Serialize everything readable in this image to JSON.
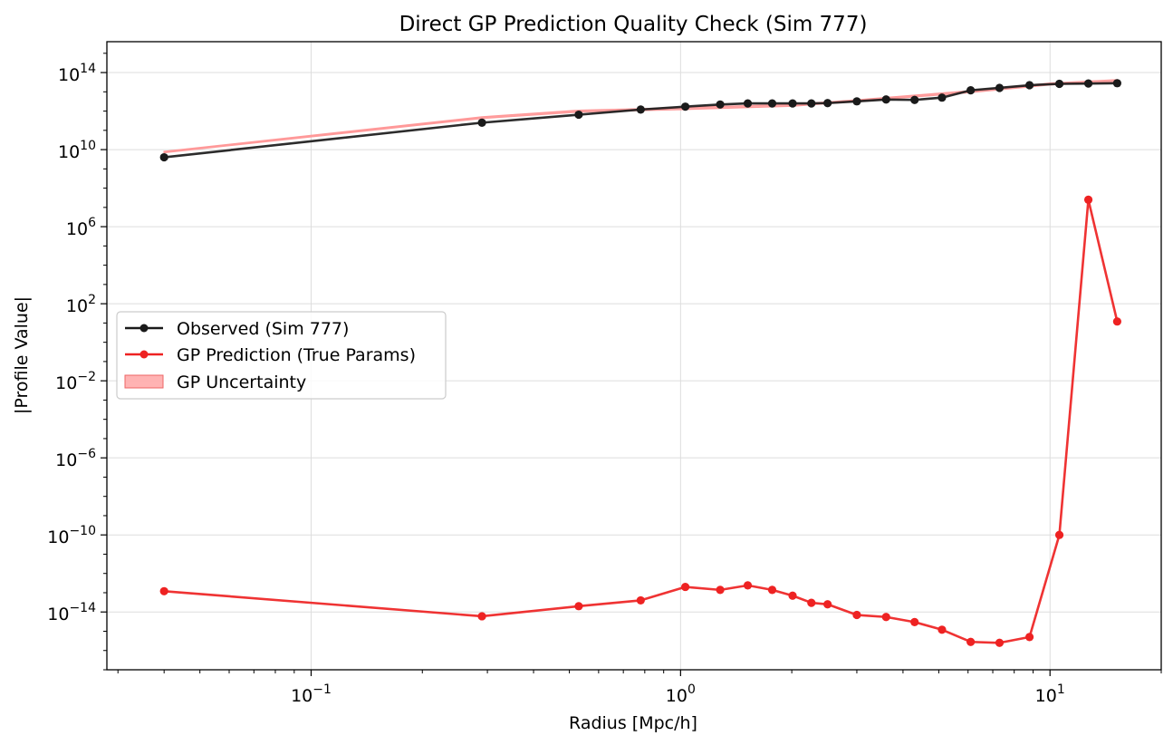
{
  "chart_data": {
    "type": "line",
    "title": "Direct GP Prediction Quality Check (Sim 777)",
    "xlabel": "Radius [Mpc/h]",
    "ylabel": "|Profile Value|",
    "x_scale": "log",
    "y_scale": "log",
    "xlim": [
      0.028,
      20
    ],
    "ylim": [
      1e-17,
      4000000000000000.0
    ],
    "x_ticks": [
      {
        "value": 0.1,
        "label": "10",
        "exp": "−1"
      },
      {
        "value": 1,
        "label": "10",
        "exp": "0"
      },
      {
        "value": 10,
        "label": "10",
        "exp": "1"
      }
    ],
    "y_ticks": [
      {
        "value": 100000000000000.0,
        "label": "10",
        "exp": "14"
      },
      {
        "value": 10000000000.0,
        "label": "10",
        "exp": "10"
      },
      {
        "value": 1000000.0,
        "label": "10",
        "exp": "6"
      },
      {
        "value": 100.0,
        "label": "10",
        "exp": "2"
      },
      {
        "value": 0.01,
        "label": "10",
        "exp": "−2"
      },
      {
        "value": 1e-06,
        "label": "10",
        "exp": "−6"
      },
      {
        "value": 1e-10,
        "label": "10",
        "exp": "−10"
      },
      {
        "value": 1e-14,
        "label": "10",
        "exp": "−14"
      }
    ],
    "grid": true,
    "legend_position": "center-left",
    "x": [
      0.04,
      0.29,
      0.53,
      0.78,
      1.03,
      1.28,
      1.52,
      1.77,
      2.01,
      2.26,
      2.5,
      3.0,
      3.6,
      4.3,
      5.1,
      6.1,
      7.3,
      8.8,
      10.6,
      12.7,
      15.2
    ],
    "series": [
      {
        "name": "Observed (Sim 777)",
        "color": "#1a1a1a",
        "values": [
          4000000000.0,
          250000000000.0,
          650000000000.0,
          1200000000000.0,
          1700000000000.0,
          2200000000000.0,
          2500000000000.0,
          2500000000000.0,
          2500000000000.0,
          2500000000000.0,
          2600000000000.0,
          3200000000000.0,
          4000000000000.0,
          3800000000000.0,
          5000000000000.0,
          12000000000000.0,
          16000000000000.0,
          22000000000000.0,
          26000000000000.0,
          27000000000000.0,
          28000000000000.0
        ]
      },
      {
        "name": "GP Prediction (True Params)",
        "color": "#ee2222",
        "values": [
          1.2e-13,
          6e-15,
          2e-14,
          4e-14,
          2e-13,
          1.4e-13,
          2.4e-13,
          1.4e-13,
          7e-14,
          3e-14,
          2.5e-14,
          7e-15,
          5.5e-15,
          3e-15,
          1.2e-15,
          2.8e-16,
          2.5e-16,
          5e-16,
          1e-10,
          25000000.0,
          12.0
        ]
      }
    ],
    "uncertainty_band": {
      "name": "GP Uncertainty",
      "color": "#ff9999",
      "x": [
        0.04,
        0.29,
        0.53,
        1.0,
        2.0,
        3.0,
        6.0,
        10.0,
        15.2
      ],
      "upper": [
        8000000000.0,
        500000000000.0,
        1100000000000.0,
        1500000000000.0,
        2200000000000.0,
        3800000000000.0,
        11000000000000.0,
        28000000000000.0,
        42000000000000.0
      ],
      "lower": [
        7000000000.0,
        420000000000.0,
        900000000000.0,
        1200000000000.0,
        1800000000000.0,
        3200000000000.0,
        9000000000000.0,
        23000000000000.0,
        34000000000000.0
      ]
    }
  }
}
